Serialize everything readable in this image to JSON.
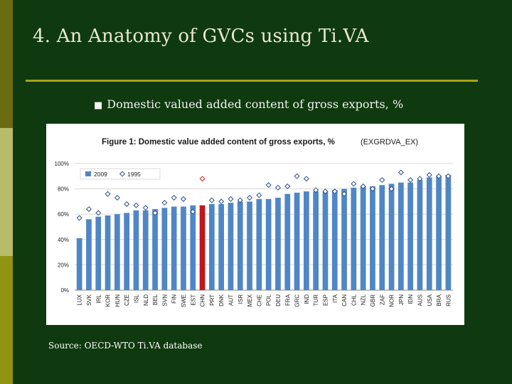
{
  "slide": {
    "title": "4. An Anatomy of GVCs using Ti.VA",
    "bullet_mark": "■",
    "bullet": "Domestic valued added content of gross exports, %",
    "source": "Source: OECD-WTO Ti.VA database"
  },
  "colors": {
    "background": "#0f3a0f",
    "rule": "#a8a418",
    "bar_2009": "#4f86c6",
    "bar_highlight": "#c0161b",
    "marker_1995_edge": "#2e4e8a",
    "marker_highlight_edge": "#d9232a"
  },
  "chart_data": {
    "type": "bar",
    "title": "Figure 1: Domestic value added content of gross exports, %",
    "subtitle": "(EXGRDVA_EX)",
    "xlabel": "",
    "ylabel": "",
    "ylim": [
      0,
      100
    ],
    "y_ticks": [
      "0%",
      "20%",
      "40%",
      "60%",
      "80%",
      "100%"
    ],
    "grid": true,
    "legend_position": "top-left",
    "highlight_category": "CHN",
    "categories": [
      "LUX",
      "SVK",
      "IRL",
      "KOR",
      "HUN",
      "CZE",
      "ISL",
      "NLD",
      "BEL",
      "SVN",
      "FIN",
      "SWE",
      "EST",
      "CHN",
      "PRT",
      "DNK",
      "AUT",
      "ISR",
      "MEX",
      "CHE",
      "POL",
      "DEU",
      "FRA",
      "GRC",
      "IND",
      "TUR",
      "ESP",
      "ITA",
      "CAN",
      "CHL",
      "NZL",
      "GBR",
      "ZAF",
      "NOR",
      "JPN",
      "IDN",
      "AUS",
      "USA",
      "BRA",
      "RUS"
    ],
    "series": [
      {
        "name": "2009",
        "mark": "bar",
        "values": [
          41,
          56,
          58,
          59,
          60,
          61,
          63,
          63,
          64,
          65,
          66,
          66,
          67,
          67,
          68,
          68,
          69,
          70,
          70,
          72,
          72,
          73,
          76,
          77,
          78,
          78,
          78,
          79,
          80,
          81,
          82,
          82,
          83,
          84,
          85,
          85,
          87,
          89,
          90,
          91
        ]
      },
      {
        "name": "1995",
        "mark": "diamond",
        "values": [
          57,
          64,
          61,
          76,
          73,
          68,
          67,
          65,
          61,
          69,
          73,
          72,
          62,
          88,
          71,
          70,
          72,
          71,
          73,
          75,
          83,
          81,
          82,
          90,
          88,
          79,
          78,
          78,
          76,
          84,
          82,
          80,
          87,
          80,
          93,
          87,
          88,
          91,
          90,
          90
        ]
      }
    ]
  }
}
